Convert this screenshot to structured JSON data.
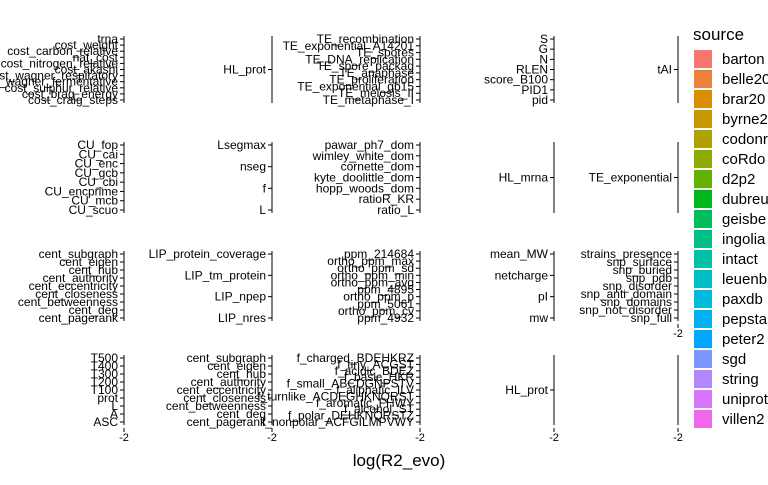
{
  "chart_data": {
    "type": "scatter",
    "xlabel": "log(R2_evo)",
    "ylabel": "",
    "grid": false,
    "legend": {
      "title": "source",
      "placement": "right",
      "entries": [
        {
          "name": "barton",
          "color": "#F8766D"
        },
        {
          "name": "belle20",
          "color": "#EC8239"
        },
        {
          "name": "brar20",
          "color": "#DB8E00"
        },
        {
          "name": "byrne2",
          "color": "#C79800"
        },
        {
          "name": "codonr",
          "color": "#AEA200"
        },
        {
          "name": "coRdo",
          "color": "#8FAA00"
        },
        {
          "name": "d2p2",
          "color": "#64B200"
        },
        {
          "name": "dubreu",
          "color": "#00B81B"
        },
        {
          "name": "geisbe",
          "color": "#00BD5C"
        },
        {
          "name": "ingolia",
          "color": "#00C086"
        },
        {
          "name": "intact",
          "color": "#00C1A7"
        },
        {
          "name": "leuenb",
          "color": "#00BFC4"
        },
        {
          "name": "paxdb",
          "color": "#00BADE"
        },
        {
          "name": "pepsta",
          "color": "#00B2F3"
        },
        {
          "name": "peter2",
          "color": "#00A6FF"
        },
        {
          "name": "sgd",
          "color": "#7C96FF"
        },
        {
          "name": "string",
          "color": "#B385FF"
        },
        {
          "name": "uniprot",
          "color": "#D874FD"
        },
        {
          "name": "villen2",
          "color": "#EF67EB"
        }
      ]
    },
    "x_tick_label": "-2",
    "panels": [
      {
        "row": 0,
        "col": 0,
        "y_ticks": [
          "trna",
          "cost_weight",
          "cost_carbon_relative",
          "nat_cost",
          "cost_nitrogen_relative",
          "cost_akashi",
          "cost_wagner_respiratory",
          "cost_wagner_fermentative",
          "cost_sulphur_relative",
          "cost_brag_energy",
          "cost_craig_steps"
        ]
      },
      {
        "row": 0,
        "col": 1,
        "y_ticks": [
          "HL_prot"
        ]
      },
      {
        "row": 0,
        "col": 2,
        "y_ticks": [
          "TE_recombination",
          "TE_exponential_A14201",
          "TE_spores",
          "TE_DNA_replication",
          "TE_spore_packag",
          "TE_anaphase",
          "TE_proliferation",
          "TE_exponential_gb15",
          "TE_meiosis_II",
          "TE_metaphase_I"
        ]
      },
      {
        "row": 0,
        "col": 3,
        "y_ticks": [
          "S",
          "G",
          "N",
          "RLEN",
          "score_B100",
          "PID1",
          "pid"
        ]
      },
      {
        "row": 0,
        "col": 4,
        "y_ticks": [
          "tAI"
        ]
      },
      {
        "row": 1,
        "col": 0,
        "y_ticks": [
          "CU_fop",
          "CU_cai",
          "CU_enc",
          "CU_gcb",
          "CU_cbi",
          "CU_encprime",
          "CU_mcb",
          "CU_scuo"
        ]
      },
      {
        "row": 1,
        "col": 1,
        "y_ticks": [
          "Lsegmax",
          "nseg",
          "f",
          "L"
        ]
      },
      {
        "row": 1,
        "col": 2,
        "y_ticks": [
          "pawar_ph7_dom",
          "wimley_white_dom",
          "cornette_dom",
          "kyte_doolittle_dom",
          "hopp_woods_dom",
          "ratioR_KR",
          "ratio_L"
        ]
      },
      {
        "row": 1,
        "col": 3,
        "y_ticks": [
          "HL_mrna"
        ]
      },
      {
        "row": 1,
        "col": 4,
        "y_ticks": [
          "TE_exponential"
        ]
      },
      {
        "row": 2,
        "col": 0,
        "y_ticks": [
          "cent_subgraph",
          "cent_eigen",
          "cent_hub",
          "cent_authority",
          "cent_eccentricity",
          "cent_closeness",
          "cent_betweenness",
          "cent_deg",
          "cent_pagerank"
        ]
      },
      {
        "row": 2,
        "col": 1,
        "y_ticks": [
          "LIP_protein_coverage",
          "LIP_tm_protein",
          "LIP_npep",
          "LIP_nres"
        ]
      },
      {
        "row": 2,
        "col": 2,
        "y_ticks": [
          "ppm_214684",
          "ortho_ppm_max",
          "ortho_ppm_sd",
          "ortho_ppm_min",
          "ortho_ppm_avg",
          "ppm_4895",
          "ortho_ppm_p",
          "ppm_5061",
          "ortho_ppm_cv",
          "ppm_4932"
        ]
      },
      {
        "row": 2,
        "col": 3,
        "y_ticks": [
          "mean_MW",
          "netcharge",
          "pI",
          "mw"
        ]
      },
      {
        "row": 2,
        "col": 4,
        "y_ticks": [
          "strains_presence",
          "snp_surface",
          "snp_buried",
          "snp_pdb",
          "snp_disorder",
          "snp_anti_domain",
          "snp_domains",
          "snp_not_disorder",
          "snp_full"
        ]
      },
      {
        "row": 3,
        "col": 0,
        "y_ticks": [
          "T500",
          "T400",
          "T300",
          "T200",
          "T100",
          "prot",
          "L",
          "A",
          "ASC"
        ]
      },
      {
        "row": 3,
        "col": 1,
        "y_ticks": [
          "cent_subgraph",
          "cent_eigen",
          "cent_hub",
          "cent_authority",
          "cent_eccentricity",
          "cent_closeness",
          "cent_betweenness",
          "cent_deg",
          "cent_pagerank"
        ]
      },
      {
        "row": 3,
        "col": 2,
        "y_ticks": [
          "f_charged_BDEHKRZ",
          "f_tiny_ACGST",
          "f_acidic_BDEZ",
          "f_basic_HKR",
          "f_small_ABCDGNPSTV",
          "f_aliphatic_ILV",
          "f_turnlike_ACDEGHKNQRST",
          "f_aromatic_FHWY",
          "f_alcohol_ST",
          "f_polar_DEHKNQRSTZ",
          "f_nonpolar_ACFGILMPVWY"
        ]
      },
      {
        "row": 3,
        "col": 3,
        "y_ticks": [
          "HL_prot"
        ]
      },
      {
        "row": 3,
        "col": 4,
        "y_ticks": []
      }
    ]
  }
}
